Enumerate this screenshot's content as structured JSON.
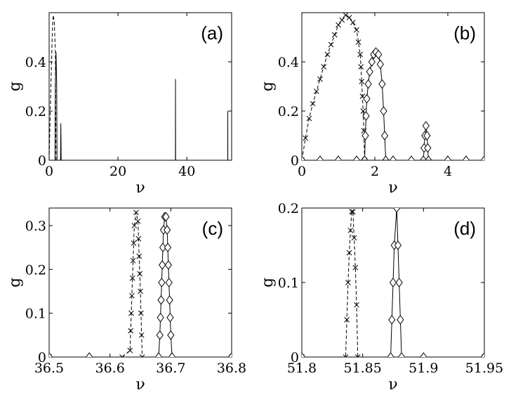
{
  "figure": {
    "title": ""
  },
  "chart_data": [
    {
      "panel": "(a)",
      "type": "line",
      "xlabel": "ν",
      "ylabel": "g",
      "xlim": [
        0,
        53
      ],
      "ylim": [
        0,
        0.6
      ],
      "xticks": [
        "0",
        "20",
        "40"
      ],
      "xtick_values": [
        0,
        20,
        40
      ],
      "yticks": [
        "0",
        "0.2",
        "0.4"
      ],
      "ytick_values": [
        0,
        0.2,
        0.4
      ],
      "grid": false,
      "series": [
        {
          "style": "dashed",
          "marker": "none",
          "points": [
            [
              0,
              0
            ],
            [
              0.5,
              0.3
            ],
            [
              1.0,
              0.55
            ],
            [
              1.2,
              0.59
            ],
            [
              1.5,
              0.56
            ],
            [
              1.8,
              0.45
            ],
            [
              2.0,
              0
            ]
          ]
        },
        {
          "style": "solid",
          "marker": "none",
          "points": [
            [
              1.7,
              0
            ],
            [
              1.8,
              0.3
            ],
            [
              2.0,
              0.44
            ],
            [
              2.2,
              0.3
            ],
            [
              2.3,
              0
            ]
          ]
        },
        {
          "style": "solid",
          "marker": "none",
          "points": [
            [
              3.3,
              0
            ],
            [
              3.4,
              0.15
            ],
            [
              3.5,
              0
            ]
          ]
        },
        {
          "style": "solid",
          "marker": "none",
          "points": [
            [
              36.67,
              0
            ],
            [
              36.7,
              0.33
            ],
            [
              36.73,
              0
            ]
          ]
        },
        {
          "style": "solid",
          "marker": "none",
          "points": [
            [
              51.86,
              0
            ],
            [
              51.88,
              0.2
            ],
            [
              51.9,
              0
            ]
          ]
        }
      ]
    },
    {
      "panel": "(b)",
      "type": "line",
      "xlabel": "ν",
      "ylabel": "g",
      "xlim": [
        0,
        5
      ],
      "ylim": [
        0,
        0.6
      ],
      "xticks": [
        "0",
        "2",
        "4"
      ],
      "xtick_values": [
        0,
        2,
        4
      ],
      "yticks": [
        "0",
        "0.2",
        "0.4"
      ],
      "ytick_values": [
        0,
        0.2,
        0.4
      ],
      "grid": false,
      "series": [
        {
          "style": "dashed",
          "marker": "x",
          "points": [
            [
              0,
              0
            ],
            [
              0.1,
              0.09
            ],
            [
              0.2,
              0.17
            ],
            [
              0.3,
              0.23
            ],
            [
              0.4,
              0.28
            ],
            [
              0.5,
              0.33
            ],
            [
              0.6,
              0.38
            ],
            [
              0.7,
              0.43
            ],
            [
              0.8,
              0.47
            ],
            [
              0.9,
              0.51
            ],
            [
              1.0,
              0.55
            ],
            [
              1.1,
              0.57
            ],
            [
              1.2,
              0.59
            ],
            [
              1.3,
              0.58
            ],
            [
              1.4,
              0.56
            ],
            [
              1.5,
              0.53
            ],
            [
              1.55,
              0.48
            ],
            [
              1.6,
              0.43
            ],
            [
              1.62,
              0.38
            ],
            [
              1.64,
              0.32
            ],
            [
              1.66,
              0.26
            ],
            [
              1.68,
              0.2
            ],
            [
              1.7,
              0.12
            ],
            [
              1.72,
              0
            ]
          ]
        },
        {
          "style": "solid",
          "marker": "diamond",
          "points": [
            [
              1.72,
              0
            ],
            [
              1.74,
              0.1
            ],
            [
              1.76,
              0.18
            ],
            [
              1.78,
              0.25
            ],
            [
              1.82,
              0.31
            ],
            [
              1.86,
              0.36
            ],
            [
              1.92,
              0.4
            ],
            [
              1.97,
              0.43
            ],
            [
              2.03,
              0.44
            ],
            [
              2.1,
              0.43
            ],
            [
              2.15,
              0.39
            ],
            [
              2.2,
              0.31
            ],
            [
              2.24,
              0.2
            ],
            [
              2.27,
              0.1
            ],
            [
              2.3,
              0
            ]
          ]
        },
        {
          "style": "solid",
          "marker": "diamond",
          "points": [
            [
              3.33,
              0
            ],
            [
              3.35,
              0.05
            ],
            [
              3.37,
              0.1
            ],
            [
              3.4,
              0.14
            ],
            [
              3.43,
              0.1
            ],
            [
              3.45,
              0.05
            ],
            [
              3.47,
              0
            ]
          ]
        },
        {
          "style": "solid",
          "marker": "diamond",
          "points": [
            [
              0,
              0
            ],
            [
              0.5,
              0
            ],
            [
              1.0,
              0
            ],
            [
              1.5,
              0
            ],
            [
              2.5,
              0
            ],
            [
              3.0,
              0
            ],
            [
              4.0,
              0
            ],
            [
              4.5,
              0
            ],
            [
              5.0,
              0
            ]
          ]
        }
      ]
    },
    {
      "panel": "(c)",
      "type": "line",
      "xlabel": "ν",
      "ylabel": "g",
      "xlim": [
        36.5,
        36.8
      ],
      "ylim": [
        0,
        0.34
      ],
      "xticks": [
        "36.5",
        "36.6",
        "36.7",
        "36.8"
      ],
      "xtick_values": [
        36.5,
        36.6,
        36.7,
        36.8
      ],
      "yticks": [
        "0",
        "0.1",
        "0.2",
        "0.3"
      ],
      "ytick_values": [
        0,
        0.1,
        0.2,
        0.3
      ],
      "grid": false,
      "series": [
        {
          "style": "dashed",
          "marker": "x",
          "points": [
            [
              36.5,
              0
            ],
            [
              36.62,
              0
            ],
            [
              36.633,
              0.015
            ],
            [
              36.634,
              0.06
            ],
            [
              36.635,
              0.1
            ],
            [
              36.636,
              0.14
            ],
            [
              36.637,
              0.18
            ],
            [
              36.638,
              0.22
            ],
            [
              36.639,
              0.26
            ],
            [
              36.64,
              0.3
            ],
            [
              36.643,
              0.33
            ],
            [
              36.646,
              0.31
            ],
            [
              36.647,
              0.27
            ],
            [
              36.648,
              0.23
            ],
            [
              36.649,
              0.19
            ],
            [
              36.65,
              0.15
            ],
            [
              36.651,
              0.1
            ],
            [
              36.652,
              0.05
            ],
            [
              36.653,
              0
            ],
            [
              36.8,
              0
            ]
          ]
        },
        {
          "style": "solid",
          "marker": "diamond",
          "points": [
            [
              36.5,
              0
            ],
            [
              36.566,
              0
            ],
            [
              36.68,
              0
            ],
            [
              36.682,
              0.05
            ],
            [
              36.683,
              0.09
            ],
            [
              36.684,
              0.13
            ],
            [
              36.685,
              0.17
            ],
            [
              36.686,
              0.21
            ],
            [
              36.687,
              0.25
            ],
            [
              36.688,
              0.29
            ],
            [
              36.69,
              0.32
            ],
            [
              36.692,
              0.32
            ],
            [
              36.694,
              0.29
            ],
            [
              36.695,
              0.25
            ],
            [
              36.696,
              0.21
            ],
            [
              36.697,
              0.17
            ],
            [
              36.698,
              0.13
            ],
            [
              36.699,
              0.09
            ],
            [
              36.7,
              0.05
            ],
            [
              36.702,
              0
            ],
            [
              36.8,
              0
            ]
          ]
        }
      ]
    },
    {
      "panel": "(d)",
      "type": "line",
      "xlabel": "ν",
      "ylabel": "g",
      "xlim": [
        51.8,
        51.95
      ],
      "ylim": [
        0,
        0.2
      ],
      "xticks": [
        "51.8",
        "51.85",
        "51.9",
        "51.95"
      ],
      "xtick_values": [
        51.8,
        51.85,
        51.9,
        51.95
      ],
      "yticks": [
        "0",
        "0.1",
        "0.2"
      ],
      "ytick_values": [
        0,
        0.1,
        0.2
      ],
      "grid": false,
      "series": [
        {
          "style": "dashed",
          "marker": "x",
          "points": [
            [
              51.8,
              0
            ],
            [
              51.836,
              0
            ],
            [
              51.837,
              0.05
            ],
            [
              51.838,
              0.1
            ],
            [
              51.839,
              0.14
            ],
            [
              51.84,
              0.17
            ],
            [
              51.841,
              0.195
            ],
            [
              51.842,
              0.195
            ],
            [
              51.843,
              0.16
            ],
            [
              51.844,
              0.12
            ],
            [
              51.845,
              0.07
            ],
            [
              51.846,
              0
            ],
            [
              51.95,
              0
            ]
          ]
        },
        {
          "style": "solid",
          "marker": "diamond",
          "points": [
            [
              51.8,
              0
            ],
            [
              51.873,
              0
            ],
            [
              51.874,
              0.05
            ],
            [
              51.875,
              0.1
            ],
            [
              51.876,
              0.15
            ],
            [
              51.878,
              0.2
            ],
            [
              51.879,
              0.15
            ],
            [
              51.88,
              0.1
            ],
            [
              51.881,
              0.05
            ],
            [
              51.882,
              0
            ],
            [
              51.9,
              0
            ],
            [
              51.95,
              0
            ]
          ]
        }
      ]
    }
  ]
}
